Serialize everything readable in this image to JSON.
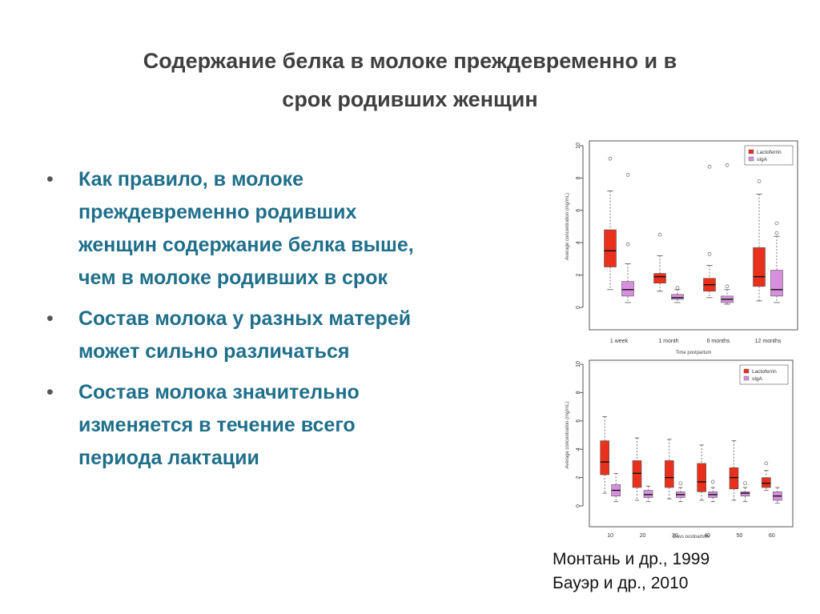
{
  "slide": {
    "title_line1": "Содержание белка в молоке преждевременно и в",
    "title_line2": "срок родивших женщин",
    "bullet_marker": "•",
    "bullets": [
      "Как правило, в молоке преждевременно родивших женщин содержание белка выше, чем в молоке родивших в срок",
      "Состав молока у разных матерей может сильно различаться",
      " Состав молока значительно изменяется в течение всего периода лактации"
    ],
    "citations": [
      "Монтань и др., 1999",
      "Бауэр и др., 2010"
    ]
  },
  "colors": {
    "lactoferrin": "#e8301c",
    "siga": "#d98fe0",
    "text_blue": "#1f6f8b",
    "title_gray": "#3f3f3f"
  },
  "chart_data": [
    {
      "type": "boxplot",
      "ylabel": "Average concentration (mg/mL)",
      "xlabel": "Time postpartum",
      "ylim": [
        0,
        10
      ],
      "yticks": [
        "0",
        "2",
        "4",
        "6",
        "8",
        "10"
      ],
      "categories": [
        "1 week",
        "1 month",
        "6 months",
        "12 months"
      ],
      "legend": {
        "position": "top-right",
        "entries": [
          "Lactoferrin",
          "sIgA"
        ]
      },
      "series": [
        {
          "name": "Lactoferrin",
          "boxes": [
            {
              "min": 1.1,
              "q1": 2.5,
              "median": 3.5,
              "q3": 4.8,
              "max": 7.2,
              "outliers": [
                9.2
              ]
            },
            {
              "min": 1.0,
              "q1": 1.5,
              "median": 1.9,
              "q3": 2.1,
              "max": 3.2,
              "outliers": [
                4.5
              ]
            },
            {
              "min": 0.6,
              "q1": 1.0,
              "median": 1.4,
              "q3": 1.8,
              "max": 2.6,
              "outliers": [
                3.3,
                8.7
              ]
            },
            {
              "min": 0.4,
              "q1": 1.3,
              "median": 1.9,
              "q3": 3.7,
              "max": 7.0,
              "outliers": [
                7.8
              ]
            }
          ]
        },
        {
          "name": "sIgA",
          "boxes": [
            {
              "min": 0.3,
              "q1": 0.7,
              "median": 1.1,
              "q3": 1.6,
              "max": 2.7,
              "outliers": [
                3.9,
                8.2
              ]
            },
            {
              "min": 0.3,
              "q1": 0.5,
              "median": 0.6,
              "q3": 0.8,
              "max": 1.1,
              "outliers": [
                1.2
              ]
            },
            {
              "min": 0.2,
              "q1": 0.3,
              "median": 0.5,
              "q3": 0.7,
              "max": 1.1,
              "outliers": [
                1.3,
                8.8
              ]
            },
            {
              "min": 0.3,
              "q1": 0.7,
              "median": 1.1,
              "q3": 2.3,
              "max": 4.4,
              "outliers": [
                4.6,
                5.2
              ]
            }
          ]
        }
      ]
    },
    {
      "type": "boxplot",
      "ylabel": "Average concentration (mg/mL)",
      "xlabel": "Days postpartum",
      "ylim": [
        0,
        10
      ],
      "yticks": [
        "0",
        "2",
        "4",
        "6",
        "8",
        "10"
      ],
      "categories": [
        "10",
        "20",
        "30",
        "40",
        "50",
        "60"
      ],
      "legend": {
        "position": "top-right",
        "entries": [
          "Lactoferrin",
          "sIgA"
        ]
      },
      "series": [
        {
          "name": "Lactoferrin",
          "boxes": [
            {
              "min": 0.9,
              "q1": 2.2,
              "median": 3.1,
              "q3": 4.6,
              "max": 6.3,
              "outliers": []
            },
            {
              "min": 0.4,
              "q1": 1.3,
              "median": 2.3,
              "q3": 3.2,
              "max": 4.8,
              "outliers": []
            },
            {
              "min": 0.5,
              "q1": 1.3,
              "median": 2.0,
              "q3": 3.2,
              "max": 4.7,
              "outliers": []
            },
            {
              "min": 0.4,
              "q1": 1.0,
              "median": 1.7,
              "q3": 3.0,
              "max": 4.3,
              "outliers": []
            },
            {
              "min": 0.4,
              "q1": 1.2,
              "median": 2.0,
              "q3": 2.7,
              "max": 4.6,
              "outliers": []
            },
            {
              "min": 1.1,
              "q1": 1.3,
              "median": 1.6,
              "q3": 2.0,
              "max": 2.5,
              "outliers": [
                3.0
              ]
            }
          ]
        },
        {
          "name": "sIgA",
          "boxes": [
            {
              "min": 0.3,
              "q1": 0.7,
              "median": 1.1,
              "q3": 1.5,
              "max": 2.3,
              "outliers": []
            },
            {
              "min": 0.3,
              "q1": 0.6,
              "median": 0.8,
              "q3": 1.1,
              "max": 1.4,
              "outliers": []
            },
            {
              "min": 0.3,
              "q1": 0.6,
              "median": 0.8,
              "q3": 1.0,
              "max": 1.3,
              "outliers": [
                1.6
              ]
            },
            {
              "min": 0.3,
              "q1": 0.6,
              "median": 0.8,
              "q3": 1.0,
              "max": 1.3,
              "outliers": [
                1.7
              ]
            },
            {
              "min": 0.3,
              "q1": 0.7,
              "median": 0.9,
              "q3": 1.0,
              "max": 1.3,
              "outliers": [
                1.6
              ]
            },
            {
              "min": 0.2,
              "q1": 0.4,
              "median": 0.7,
              "q3": 1.0,
              "max": 1.3,
              "outliers": []
            }
          ]
        }
      ]
    }
  ]
}
